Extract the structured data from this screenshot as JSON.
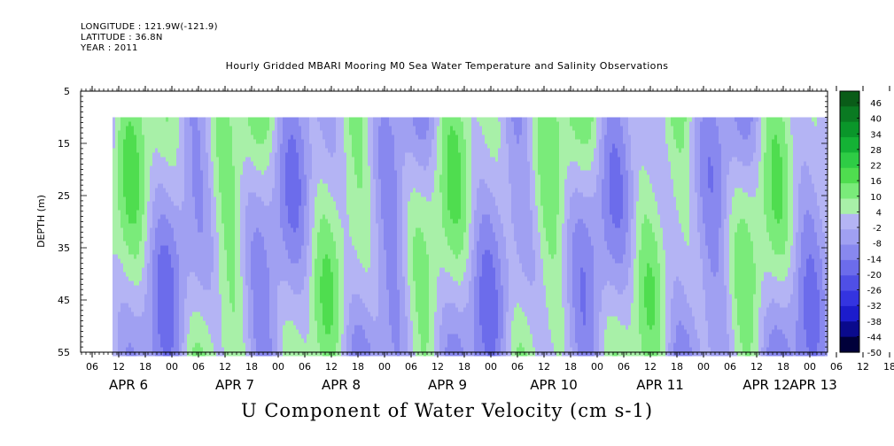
{
  "header": {
    "longitude": "LONGITUDE : 121.9W(-121.9)",
    "latitude": "LATITUDE : 36.8N",
    "year": "YEAR : 2011"
  },
  "chart_data": {
    "type": "heatmap",
    "title": "Hourly Gridded MBARI Mooring M0 Sea Water Temperature and Salinity Observations",
    "subtitle": "U Component of Water Velocity (cm s-1)",
    "ylabel": "DEPTH (m)",
    "xlabel": "",
    "y_ticks": [
      5,
      15,
      25,
      35,
      45,
      55
    ],
    "ylim": [
      5,
      55
    ],
    "y_direction": "down",
    "data_depth_range": [
      10,
      55
    ],
    "x_hour_ticks": [
      "06",
      "12",
      "18",
      "00",
      "06",
      "12",
      "18",
      "00",
      "06",
      "12",
      "18",
      "00",
      "06",
      "12",
      "18",
      "00",
      "06",
      "12",
      "18",
      "00",
      "06",
      "12",
      "18",
      "00",
      "06",
      "12",
      "18",
      "00",
      "06",
      "12",
      "18",
      "00"
    ],
    "x_day_labels": [
      "APR  6",
      "APR  7",
      "APR  8",
      "APR  9",
      "APR 10",
      "APR 11",
      "APR 12",
      "APR 13"
    ],
    "colorbar": {
      "labels": [
        "46",
        "40",
        "34",
        "28",
        "22",
        "16",
        "10",
        "4",
        "-2",
        "-8",
        "-14",
        "-20",
        "-26",
        "-32",
        "-38",
        "-44",
        "-50"
      ],
      "min": -50,
      "max": 52,
      "colors": [
        "#00003a",
        "#0a0a8c",
        "#1c1ccc",
        "#3434e0",
        "#4f4fe6",
        "#6c6ceb",
        "#8888ef",
        "#a0a0f2",
        "#b4b4f4",
        "#a8f0a8",
        "#7aeb7a",
        "#4fdd4f",
        "#2ecc45",
        "#14b235",
        "#0a962a",
        "#0a7a22",
        "#0a5c18"
      ]
    }
  }
}
